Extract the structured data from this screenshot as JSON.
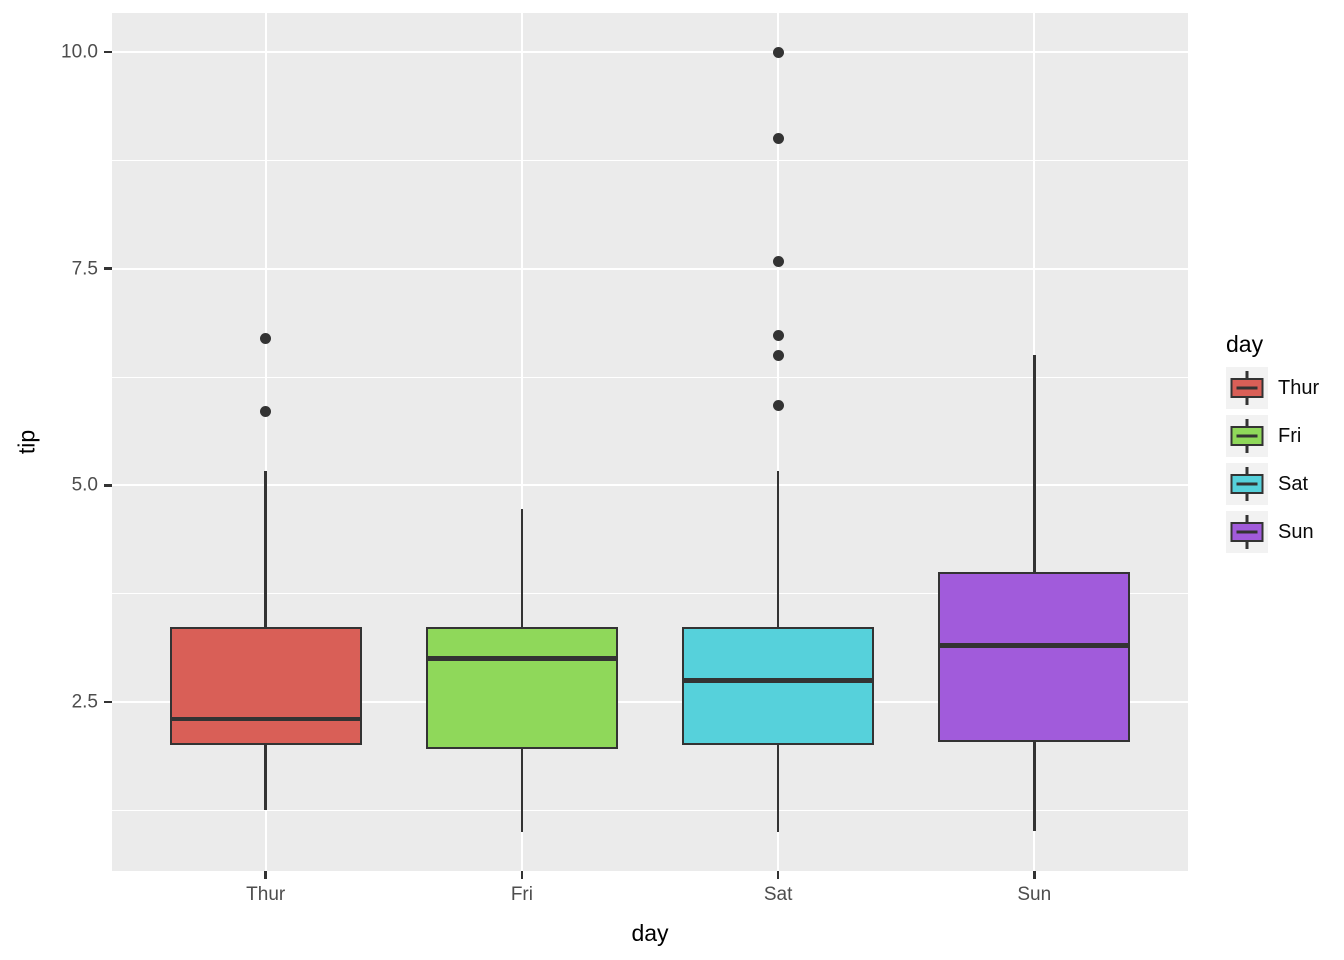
{
  "figure": {
    "background": "#FFFFFF",
    "panel_background": "#EBEBEB",
    "grid_color": "#FFFFFF",
    "stroke_color": "#333333",
    "tick_label_color": "#4D4D4D",
    "legend_key_background": "#F2F2F2"
  },
  "axes": {
    "x_title": "day",
    "y_title": "tip",
    "x_tick_labels": [
      "Thur",
      "Fri",
      "Sat",
      "Sun"
    ],
    "y_tick_labels": [
      "2.5",
      "5.0",
      "7.5",
      "10.0"
    ],
    "y_tick_values": [
      2.5,
      5.0,
      7.5,
      10.0
    ],
    "y_minor_values": [
      1.25,
      3.75,
      6.25,
      8.75
    ],
    "ylim": [
      0.55,
      10.45
    ]
  },
  "legend": {
    "title": "day",
    "items": [
      {
        "label": "Thur",
        "color": "#D95F57"
      },
      {
        "label": "Fri",
        "color": "#8FD85A"
      },
      {
        "label": "Sat",
        "color": "#56D1DB"
      },
      {
        "label": "Sun",
        "color": "#A15BDB"
      }
    ]
  },
  "chart_data": {
    "type": "boxplot",
    "title": "",
    "xlabel": "day",
    "ylabel": "tip",
    "categories": [
      "Thur",
      "Fri",
      "Sat",
      "Sun"
    ],
    "series": [
      {
        "name": "Thur",
        "color": "#D95F57",
        "whisker_low": 1.25,
        "q1": 2.0,
        "median": 2.305,
        "q3": 3.36,
        "whisker_high": 5.17,
        "outliers": [
          5.85,
          6.7
        ]
      },
      {
        "name": "Fri",
        "color": "#8FD85A",
        "whisker_low": 1.0,
        "q1": 1.96,
        "median": 3.0,
        "q3": 3.36,
        "whisker_high": 4.73,
        "outliers": []
      },
      {
        "name": "Sat",
        "color": "#56D1DB",
        "whisker_low": 1.0,
        "q1": 2.0,
        "median": 2.75,
        "q3": 3.37,
        "whisker_high": 5.16,
        "outliers": [
          5.92,
          6.5,
          6.73,
          7.58,
          9.0,
          10.0
        ]
      },
      {
        "name": "Sun",
        "color": "#A15BDB",
        "whisker_low": 1.01,
        "q1": 2.04,
        "median": 3.15,
        "q3": 4.0,
        "whisker_high": 6.5,
        "outliers": []
      }
    ],
    "ylim": [
      0.55,
      10.45
    ],
    "y_ticks": [
      2.5,
      5.0,
      7.5,
      10.0
    ],
    "grid": true,
    "legend_position": "right"
  }
}
